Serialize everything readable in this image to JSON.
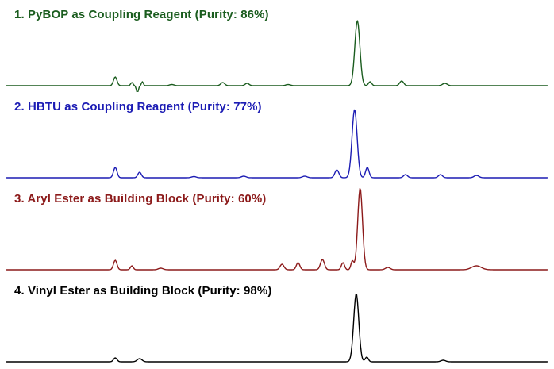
{
  "chart_data": {
    "type": "line",
    "title": "",
    "description": "Four stacked HPLC/UPLC chromatogram traces comparing coupling reagents and building blocks; unlabeled axes (retention vs relative intensity). Peak x positions are percent of trace width; h is relative intensity amplitude; w is peak width (sigma).",
    "axes": "none",
    "grid": false,
    "legend": "none",
    "x_range_percent": [
      1.2,
      98.8
    ],
    "panels": [
      {
        "id": 1,
        "label": "1. PyBOP as Coupling Reagent (Purity: 86%)",
        "purity_percent": 86,
        "color": "#1a5c1e",
        "peaks": [
          {
            "x": 20.8,
            "h": 11,
            "w": 2.2
          },
          {
            "x": 23.8,
            "h": 4,
            "w": 1.5
          },
          {
            "x": 24.8,
            "h": -9,
            "w": 1.3
          },
          {
            "x": 25.7,
            "h": 5,
            "w": 1.2
          },
          {
            "x": 31.0,
            "h": 1.5,
            "w": 3.0
          },
          {
            "x": 40.2,
            "h": 4,
            "w": 2.5
          },
          {
            "x": 44.6,
            "h": 3,
            "w": 2.5
          },
          {
            "x": 52.0,
            "h": 1.5,
            "w": 3.0
          },
          {
            "x": 64.5,
            "h": 82,
            "w": 3.2
          },
          {
            "x": 66.8,
            "h": 5,
            "w": 2.0
          },
          {
            "x": 72.5,
            "h": 6,
            "w": 2.5
          },
          {
            "x": 80.3,
            "h": 3,
            "w": 3.0
          }
        ]
      },
      {
        "id": 2,
        "label": "2. HBTU as Coupling Reagent (Purity: 77%)",
        "purity_percent": 77,
        "color": "#1c1cb4",
        "peaks": [
          {
            "x": 20.8,
            "h": 13,
            "w": 2.2
          },
          {
            "x": 25.2,
            "h": 7,
            "w": 2.2
          },
          {
            "x": 35.0,
            "h": 1.5,
            "w": 3.0
          },
          {
            "x": 44.0,
            "h": 2,
            "w": 3.0
          },
          {
            "x": 55.0,
            "h": 2,
            "w": 3.0
          },
          {
            "x": 60.8,
            "h": 10,
            "w": 2.5
          },
          {
            "x": 64.0,
            "h": 86,
            "w": 3.2
          },
          {
            "x": 66.3,
            "h": 13,
            "w": 2.2
          },
          {
            "x": 73.2,
            "h": 4,
            "w": 2.5
          },
          {
            "x": 79.5,
            "h": 4,
            "w": 2.5
          },
          {
            "x": 86.0,
            "h": 3,
            "w": 3.0
          }
        ]
      },
      {
        "id": 3,
        "label": "3. Aryl Ester as Building Block (Purity: 60%)",
        "purity_percent": 60,
        "color": "#8c1a1a",
        "peaks": [
          {
            "x": 20.8,
            "h": 12,
            "w": 2.2
          },
          {
            "x": 23.8,
            "h": 5,
            "w": 1.8
          },
          {
            "x": 29.0,
            "h": 2,
            "w": 3.0
          },
          {
            "x": 50.9,
            "h": 7,
            "w": 2.5
          },
          {
            "x": 53.8,
            "h": 9,
            "w": 2.2
          },
          {
            "x": 58.2,
            "h": 13,
            "w": 2.5
          },
          {
            "x": 61.9,
            "h": 9,
            "w": 2.0
          },
          {
            "x": 63.6,
            "h": 11,
            "w": 1.8
          },
          {
            "x": 65.0,
            "h": 103,
            "w": 3.0
          },
          {
            "x": 70.0,
            "h": 3,
            "w": 3.0
          },
          {
            "x": 86.0,
            "h": 5,
            "w": 6.0
          }
        ]
      },
      {
        "id": 4,
        "label": "4. Vinyl Ester as Building Block (Purity: 98%)",
        "purity_percent": 98,
        "color": "#000000",
        "peaks": [
          {
            "x": 20.8,
            "h": 5,
            "w": 2.2
          },
          {
            "x": 25.2,
            "h": 4,
            "w": 3.0
          },
          {
            "x": 64.3,
            "h": 86,
            "w": 3.2
          },
          {
            "x": 66.2,
            "h": 6,
            "w": 2.0
          },
          {
            "x": 80.0,
            "h": 2,
            "w": 3.0
          }
        ]
      }
    ]
  }
}
